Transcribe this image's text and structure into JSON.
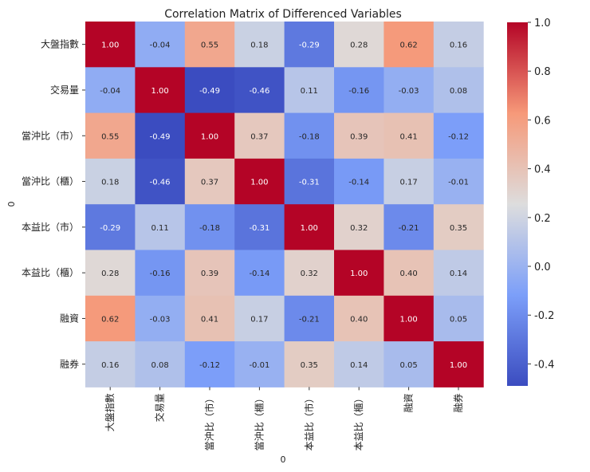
{
  "chart_data": {
    "type": "heatmap",
    "title": "Correlation Matrix of Differenced Variables",
    "xlabel": "0",
    "ylabel": "0",
    "labels": [
      "大盤指數",
      "交易量",
      "當沖比（市）",
      "當沖比（櫃）",
      "本益比（市）",
      "本益比（櫃）",
      "融資",
      "融券"
    ],
    "matrix": [
      [
        1.0,
        -0.04,
        0.55,
        0.18,
        -0.29,
        0.28,
        0.62,
        0.16
      ],
      [
        -0.04,
        1.0,
        -0.49,
        -0.46,
        0.11,
        -0.16,
        -0.03,
        0.08
      ],
      [
        0.55,
        -0.49,
        1.0,
        0.37,
        -0.18,
        0.39,
        0.41,
        -0.12
      ],
      [
        0.18,
        -0.46,
        0.37,
        1.0,
        -0.31,
        -0.14,
        0.17,
        -0.01
      ],
      [
        -0.29,
        0.11,
        -0.18,
        -0.31,
        1.0,
        0.32,
        -0.21,
        0.35
      ],
      [
        0.28,
        -0.16,
        0.39,
        -0.14,
        0.32,
        1.0,
        0.4,
        0.14
      ],
      [
        0.62,
        -0.03,
        0.41,
        0.17,
        -0.21,
        0.4,
        1.0,
        0.05
      ],
      [
        0.16,
        0.08,
        -0.12,
        -0.01,
        0.35,
        0.14,
        0.05,
        1.0
      ]
    ],
    "colormap": "coolwarm",
    "vmin": -0.49,
    "vmax": 1.0,
    "colorbar_ticks": [
      1.0,
      0.8,
      0.6,
      0.4,
      0.2,
      0.0,
      -0.2,
      -0.4
    ],
    "value_format": "2 decimals"
  }
}
